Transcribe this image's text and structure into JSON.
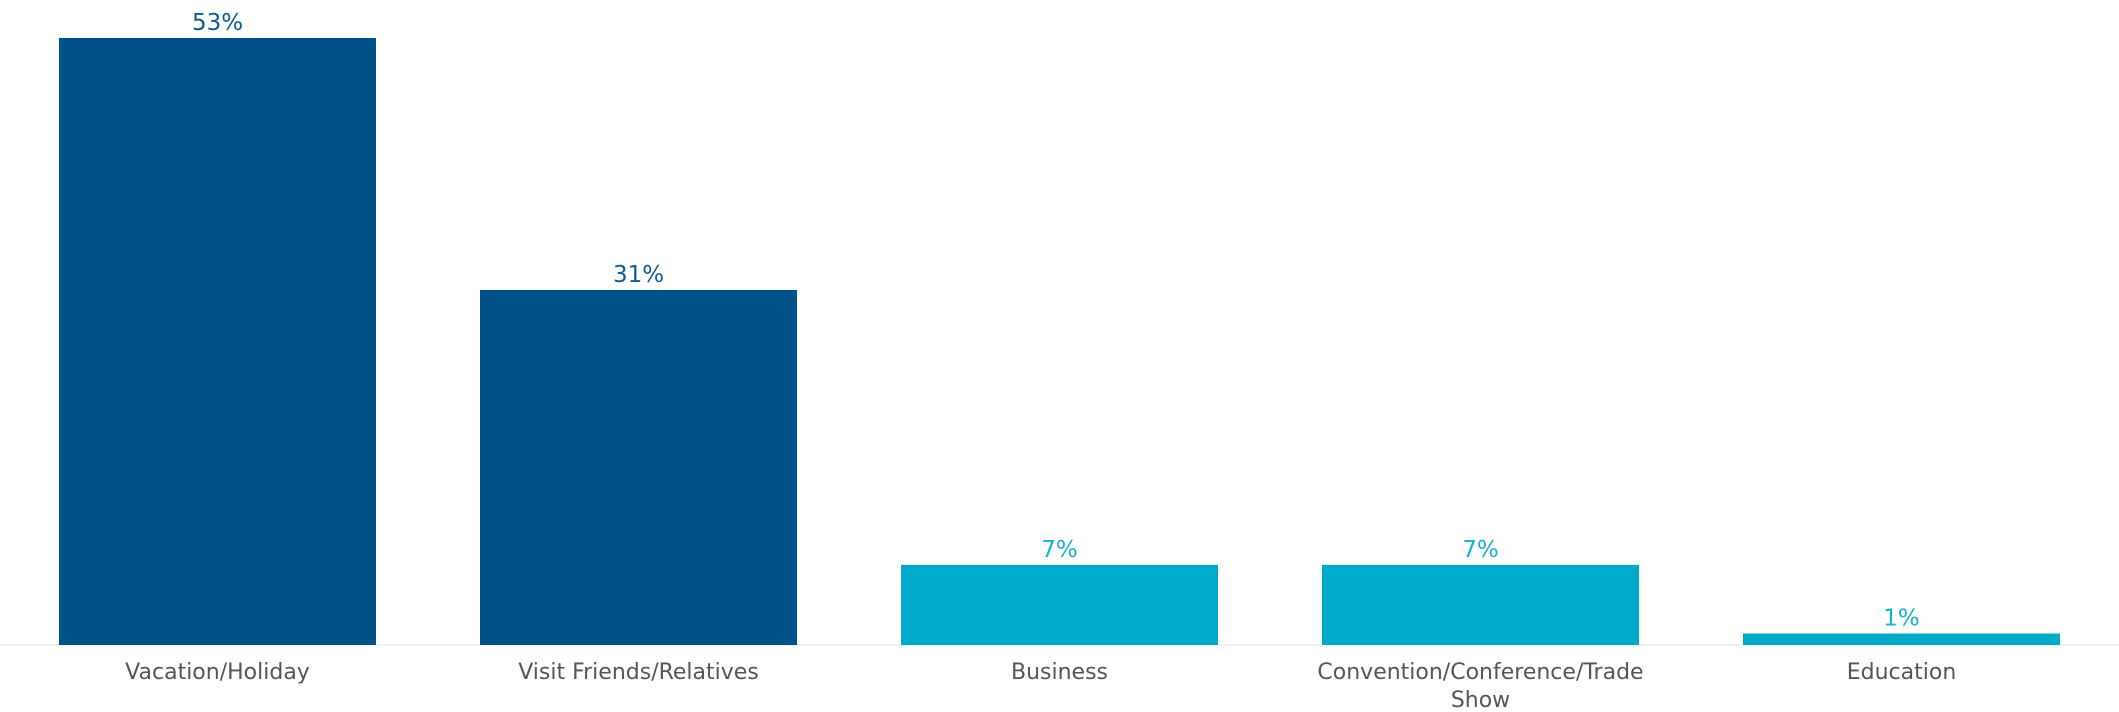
{
  "chart_data": {
    "type": "bar",
    "title": "",
    "xlabel": "",
    "ylabel": "",
    "categories": [
      "Vacation/Holiday",
      "Visit Friends/Relatives",
      "Business",
      "Convention/Conference/Trade Show",
      "Education"
    ],
    "category_lines": [
      [
        "Vacation/Holiday"
      ],
      [
        "Visit Friends/Relatives"
      ],
      [
        "Business"
      ],
      [
        "Convention/Conference/Trade",
        "Show"
      ],
      [
        "Education"
      ]
    ],
    "values": [
      53,
      31,
      7,
      7,
      1
    ],
    "value_labels": [
      "53%",
      "31%",
      "7%",
      "7%",
      "1%"
    ],
    "ylim": [
      0,
      53
    ],
    "grid": false,
    "legend": "none",
    "colors": [
      "#005288",
      "#005288",
      "#00AAC8",
      "#00AAC8",
      "#00AAC8"
    ],
    "label_colors": [
      "#0E5A94",
      "#0E5A94",
      "#18B0D3",
      "#18B0D3",
      "#18B0D3"
    ]
  }
}
